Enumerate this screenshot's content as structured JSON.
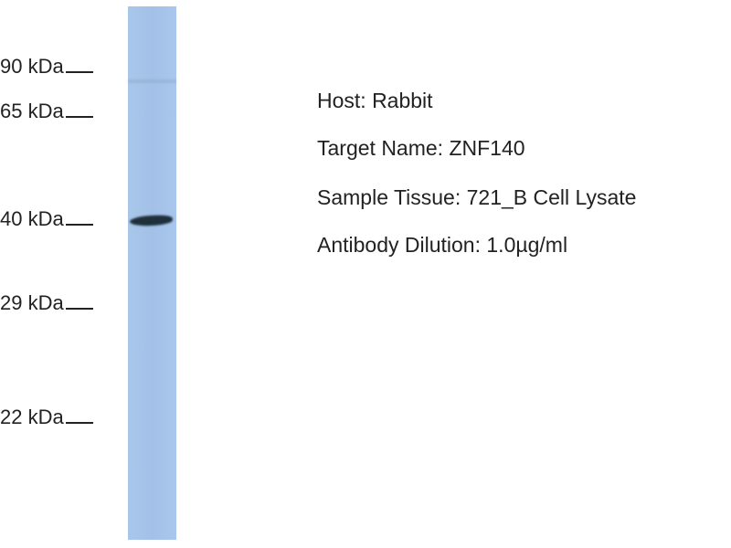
{
  "markers": [
    {
      "label": "90 kDa"
    },
    {
      "label": "65 kDa"
    },
    {
      "label": "40 kDa"
    },
    {
      "label": "29 kDa"
    },
    {
      "label": "22 kDa"
    }
  ],
  "lane_color": "#a6c4ea",
  "band_color": "#1f2f3c",
  "info": {
    "host": "Host: Rabbit",
    "target": "Target Name: ZNF140",
    "tissue": "Sample Tissue: 721_B Cell Lysate",
    "dilution": "Antibody Dilution: 1.0µg/ml"
  }
}
